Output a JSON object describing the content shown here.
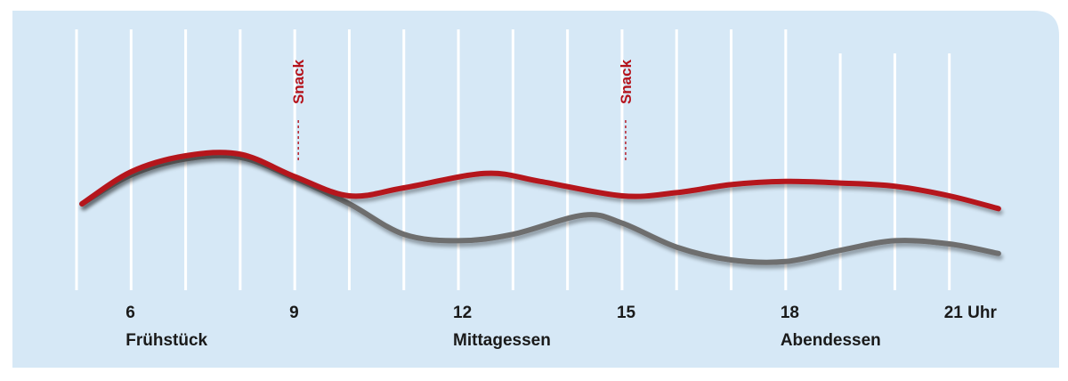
{
  "chart_data": {
    "type": "line",
    "title": "",
    "xlabel": "",
    "ylabel": "",
    "x_unit": "Uhr",
    "xlim": [
      5.0,
      22.0
    ],
    "ylim": [
      0,
      10
    ],
    "grid": true,
    "gridline_hours": [
      5,
      6,
      7,
      8,
      9,
      10,
      11,
      12,
      13,
      14,
      15,
      16,
      17,
      18,
      19,
      20,
      21
    ],
    "tick_labels": [
      {
        "x": 6,
        "text": "6"
      },
      {
        "x": 9,
        "text": "9"
      },
      {
        "x": 12,
        "text": "12"
      },
      {
        "x": 15,
        "text": "15"
      },
      {
        "x": 18,
        "text": "18"
      },
      {
        "x": 21,
        "text": "21 Uhr"
      }
    ],
    "meal_labels": [
      {
        "x": 6,
        "text": "Frühstück"
      },
      {
        "x": 12,
        "text": "Mittagessen"
      },
      {
        "x": 18,
        "text": "Abendessen"
      }
    ],
    "annotations": [
      {
        "x": 9,
        "text": "Snack"
      },
      {
        "x": 15,
        "text": "Snack"
      }
    ],
    "series": [
      {
        "color": "#b5121b",
        "points": [
          [
            5.1,
            4.5
          ],
          [
            6.0,
            6.5
          ],
          [
            7.0,
            7.5
          ],
          [
            8.0,
            7.6
          ],
          [
            9.0,
            6.2
          ],
          [
            10.0,
            5.0
          ],
          [
            11.0,
            5.5
          ],
          [
            12.5,
            6.4
          ],
          [
            13.5,
            5.9
          ],
          [
            15.0,
            5.0
          ],
          [
            16.0,
            5.2
          ],
          [
            17.0,
            5.7
          ],
          [
            18.0,
            5.9
          ],
          [
            19.0,
            5.8
          ],
          [
            20.0,
            5.6
          ],
          [
            21.0,
            5.0
          ],
          [
            21.9,
            4.2
          ]
        ]
      },
      {
        "color": "#6e6e6e",
        "points": [
          [
            5.1,
            4.5
          ],
          [
            6.0,
            6.3
          ],
          [
            7.0,
            7.3
          ],
          [
            8.0,
            7.4
          ],
          [
            9.0,
            6.1
          ],
          [
            10.0,
            4.5
          ],
          [
            11.0,
            2.6
          ],
          [
            12.0,
            2.2
          ],
          [
            13.0,
            2.6
          ],
          [
            14.3,
            3.8
          ],
          [
            15.0,
            3.3
          ],
          [
            16.0,
            1.8
          ],
          [
            17.0,
            1.0
          ],
          [
            18.0,
            0.9
          ],
          [
            19.0,
            1.6
          ],
          [
            20.0,
            2.2
          ],
          [
            21.0,
            2.0
          ],
          [
            21.9,
            1.4
          ]
        ]
      }
    ],
    "background_color": "#d6e8f6"
  }
}
